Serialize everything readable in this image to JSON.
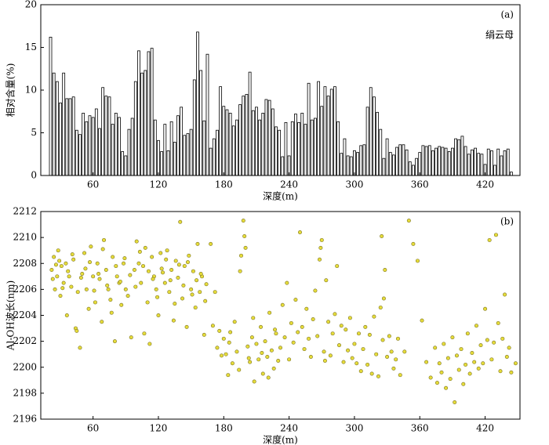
{
  "chart_data": [
    {
      "type": "bar",
      "annotation": "(a)",
      "xlabel": "深度(m)",
      "ylabel": "相对含量(%)",
      "series": [
        {
          "name": "绢云母",
          "color": "#ffffff",
          "x": [
            21,
            24,
            27,
            30,
            33,
            36,
            39,
            42,
            45,
            48,
            51,
            54,
            57,
            60,
            63,
            66,
            69,
            72,
            75,
            78,
            81,
            84,
            87,
            90,
            93,
            96,
            99,
            102,
            105,
            108,
            111,
            114,
            117,
            120,
            123,
            126,
            129,
            132,
            135,
            138,
            141,
            144,
            147,
            150,
            153,
            156,
            159,
            162,
            165,
            168,
            171,
            174,
            177,
            180,
            183,
            186,
            189,
            192,
            195,
            198,
            201,
            204,
            207,
            210,
            213,
            216,
            219,
            222,
            225,
            228,
            231,
            234,
            237,
            240,
            243,
            246,
            249,
            252,
            255,
            258,
            261,
            264,
            267,
            270,
            273,
            276,
            279,
            282,
            285,
            288,
            291,
            294,
            297,
            300,
            303,
            306,
            309,
            312,
            315,
            318,
            321,
            324,
            327,
            330,
            333,
            336,
            339,
            342,
            345,
            348,
            351,
            354,
            357,
            360,
            363,
            366,
            369,
            372,
            375,
            378,
            381,
            384,
            387,
            390,
            393,
            396,
            399,
            402,
            405,
            408,
            411,
            414,
            417,
            420,
            423,
            426,
            429,
            432,
            435,
            438,
            441,
            444
          ],
          "values": [
            16.2,
            12,
            11,
            8.5,
            12,
            9,
            9,
            9.2,
            5.3,
            4.8,
            7.3,
            6.3,
            7,
            6.8,
            7.8,
            5.5,
            10.3,
            9.3,
            9.2,
            6,
            7.3,
            6.8,
            2.8,
            2.3,
            5.4,
            6.7,
            11,
            14.6,
            12,
            12.3,
            14.5,
            14.9,
            6.5,
            4.1,
            2.8,
            6,
            2.9,
            6.3,
            3.9,
            7,
            8,
            4.7,
            4.9,
            5.4,
            11.2,
            16.8,
            12.3,
            6.4,
            14.2,
            3.2,
            4.3,
            5.3,
            10.4,
            8.1,
            7.7,
            7.3,
            5.8,
            6.5,
            8.3,
            9.3,
            9.5,
            12.1,
            7.6,
            8,
            6.5,
            7.3,
            8.9,
            8.8,
            7.8,
            5.7,
            5.3,
            2.2,
            6.2,
            2.3,
            6.3,
            7.2,
            6.2,
            7.3,
            6,
            10.8,
            6.5,
            6.7,
            11,
            8.1,
            10.4,
            9.3,
            10.1,
            10.4,
            6.3,
            2.6,
            4.3,
            2.3,
            2.2,
            2.9,
            2.7,
            3.5,
            3.6,
            8,
            10.3,
            9.2,
            7.4,
            5.4,
            2,
            4.3,
            2.7,
            2.4,
            3.3,
            3.6,
            3.6,
            3,
            1.6,
            1.2,
            2,
            2.7,
            3.5,
            3.4,
            3.5,
            2.9,
            3.2,
            3.4,
            3.3,
            3.2,
            2.8,
            3.2,
            4.3,
            4.2,
            4.6,
            3.4,
            2.5,
            3,
            3.2,
            2.6,
            2.5,
            1.3,
            3.1,
            2.9,
            1.2,
            3.1,
            2.3,
            2.9,
            3.1,
            0.4
          ]
        }
      ],
      "xlim": [
        12,
        452
      ],
      "xticks": [
        60,
        120,
        180,
        240,
        300,
        360,
        420
      ],
      "ylim": [
        0,
        20
      ],
      "yticks": [
        0,
        5,
        10,
        15,
        20
      ]
    },
    {
      "type": "scatter",
      "annotation": "(b)",
      "xlabel": "深度(m)",
      "ylabel": "Al-OH波长(nm)",
      "color": "#e6dc3a",
      "x": [
        22,
        24,
        25,
        27,
        28,
        30,
        31,
        33,
        35,
        36,
        38,
        40,
        42,
        44,
        46,
        48,
        50,
        52,
        54,
        56,
        58,
        60,
        62,
        64,
        66,
        68,
        70,
        72,
        74,
        76,
        78,
        80,
        82,
        84,
        86,
        88,
        90,
        92,
        95,
        98,
        100,
        102,
        104,
        106,
        108,
        110,
        112,
        114,
        116,
        118,
        120,
        122,
        124,
        126,
        128,
        130,
        132,
        134,
        136,
        138,
        140,
        142,
        144,
        146,
        148,
        150,
        152,
        154,
        156,
        158,
        160,
        162,
        164,
        23,
        26,
        29,
        32,
        37,
        41,
        45,
        49,
        53,
        57,
        61,
        65,
        69,
        73,
        77,
        81,
        85,
        89,
        94,
        99,
        103,
        107,
        111,
        115,
        119,
        123,
        127,
        131,
        135,
        139,
        143,
        147,
        151,
        155,
        159,
        163,
        168,
        170,
        172,
        174,
        176,
        178,
        180,
        182,
        184,
        186,
        188,
        190,
        192,
        194,
        196,
        198,
        200,
        202,
        204,
        206,
        208,
        210,
        212,
        214,
        216,
        218,
        220,
        222,
        224,
        226,
        228,
        230,
        185,
        195,
        199,
        203,
        207,
        215,
        221,
        227,
        232,
        234,
        236,
        238,
        240,
        242,
        244,
        246,
        248,
        250,
        252,
        254,
        256,
        258,
        260,
        262,
        264,
        266,
        268,
        270,
        272,
        274,
        276,
        278,
        280,
        282,
        284,
        286,
        288,
        290,
        292,
        294,
        296,
        298,
        269,
        273,
        300,
        302,
        304,
        306,
        308,
        310,
        312,
        314,
        316,
        318,
        320,
        322,
        324,
        326,
        328,
        330,
        332,
        334,
        336,
        338,
        340,
        342,
        325,
        327,
        346,
        350,
        354,
        358,
        362,
        366,
        370,
        374,
        376,
        378,
        380,
        382,
        384,
        386,
        388,
        390,
        392,
        394,
        396,
        398,
        400,
        402,
        404,
        406,
        408,
        410,
        412,
        414,
        416,
        418,
        420,
        422,
        424,
        426,
        428,
        430,
        432,
        434,
        436,
        438,
        440,
        442,
        444,
        448
      ],
      "values": [
        2207.5,
        2208.5,
        2206,
        2207,
        2209,
        2205.5,
        2207.8,
        2206.5,
        2208,
        2204,
        2207,
        2206.2,
        2208.3,
        2203,
        2205.8,
        2201.5,
        2207.2,
        2208.8,
        2206,
        2204.5,
        2209.3,
        2207,
        2205,
        2208,
        2206.8,
        2203.5,
        2209.8,
        2207.5,
        2206,
        2205.2,
        2208.5,
        2202,
        2207,
        2206.5,
        2204.8,
        2208,
        2206,
        2205.5,
        2202.3,
        2207.5,
        2209.7,
        2208,
        2206.5,
        2207.8,
        2209.2,
        2205,
        2201.8,
        2208.5,
        2207,
        2206,
        2204,
        2208.8,
        2207.3,
        2206.5,
        2209,
        2205.8,
        2207.5,
        2203.6,
        2208.2,
        2206.9,
        2211.2,
        2205.3,
        2207.8,
        2203.1,
        2208.6,
        2206,
        2207.4,
        2204.6,
        2209.5,
        2205.8,
        2207,
        2202.5,
        2206.4,
        2206.8,
        2207.9,
        2208.2,
        2206.1,
        2207.4,
        2208.7,
        2202.8,
        2206.9,
        2207.6,
        2208.1,
        2205.9,
        2207.2,
        2209.1,
        2206.3,
        2204.2,
        2207.8,
        2206.6,
        2208.4,
        2207.1,
        2206.2,
        2208.9,
        2202.6,
        2207.4,
        2206.8,
        2205.4,
        2207.6,
        2208.3,
        2206.7,
        2204.9,
        2207.9,
        2206.3,
        2208.1,
        2205.6,
        2206.7,
        2207.2,
        2205.1,
        2209.5,
        2203.2,
        2205.8,
        2201.5,
        2202.8,
        2200.9,
        2202.2,
        2201,
        2199.4,
        2202.7,
        2200.3,
        2203.5,
        2201.2,
        2199.8,
        2208.6,
        2211.3,
        2209.2,
        2201.6,
        2200.4,
        2202.3,
        2198.9,
        2201.8,
        2200.6,
        2203.1,
        2199.5,
        2202,
        2200.8,
        2204.2,
        2201.3,
        2199.9,
        2202.6,
        2200.5,
        2201.9,
        2207.4,
        2210.1,
        2200.7,
        2203.8,
        2201.1,
        2199.2,
        2202.9,
        2201.5,
        2204.8,
        2202.3,
        2206.5,
        2200.6,
        2203.4,
        2201.9,
        2205.2,
        2202.7,
        2210.4,
        2203.1,
        2201.4,
        2204.5,
        2202.2,
        2200.8,
        2203.7,
        2205.9,
        2202.4,
        2208.3,
        2209.8,
        2201.2,
        2206.7,
        2203.5,
        2200.9,
        2202.6,
        2204.1,
        2207.8,
        2201.7,
        2203.2,
        2200.4,
        2202.9,
        2201.3,
        2203.8,
        2200.7,
        2209.2,
        2200.5,
        2201.8,
        2200.3,
        2202.6,
        2199.7,
        2201.4,
        2203.1,
        2200.2,
        2202.5,
        2199.5,
        2203.9,
        2201,
        2199.3,
        2204.6,
        2202.1,
        2207.5,
        2200.8,
        2202.4,
        2201.2,
        2199.9,
        2200.6,
        2202.2,
        2199.4,
        2210.1,
        2205.3,
        2201.2,
        2211.3,
        2209.5,
        2208.2,
        2203.6,
        2200.4,
        2199.2,
        2201.5,
        2198.8,
        2200.3,
        2199.6,
        2201.8,
        2198.4,
        2200.7,
        2199.1,
        2202.3,
        2197.3,
        2200.9,
        2199.8,
        2201.4,
        2198.7,
        2200.2,
        2202.6,
        2199.5,
        2201.1,
        2200.4,
        2203.2,
        2199.9,
        2201.7,
        2200.3,
        2204.5,
        2202.1,
        2209.8,
        2200.6,
        2201.9,
        2210.2,
        2203.4,
        2199.7,
        2202.2,
        2205.6,
        2200.8,
        2201.5,
        2199.6,
        2200.3
      ],
      "xlim": [
        12,
        452
      ],
      "xticks": [
        60,
        120,
        180,
        240,
        300,
        360,
        420
      ],
      "ylim": [
        2196,
        2212
      ],
      "yticks": [
        2196,
        2198,
        2200,
        2202,
        2204,
        2206,
        2208,
        2210,
        2212
      ]
    }
  ]
}
